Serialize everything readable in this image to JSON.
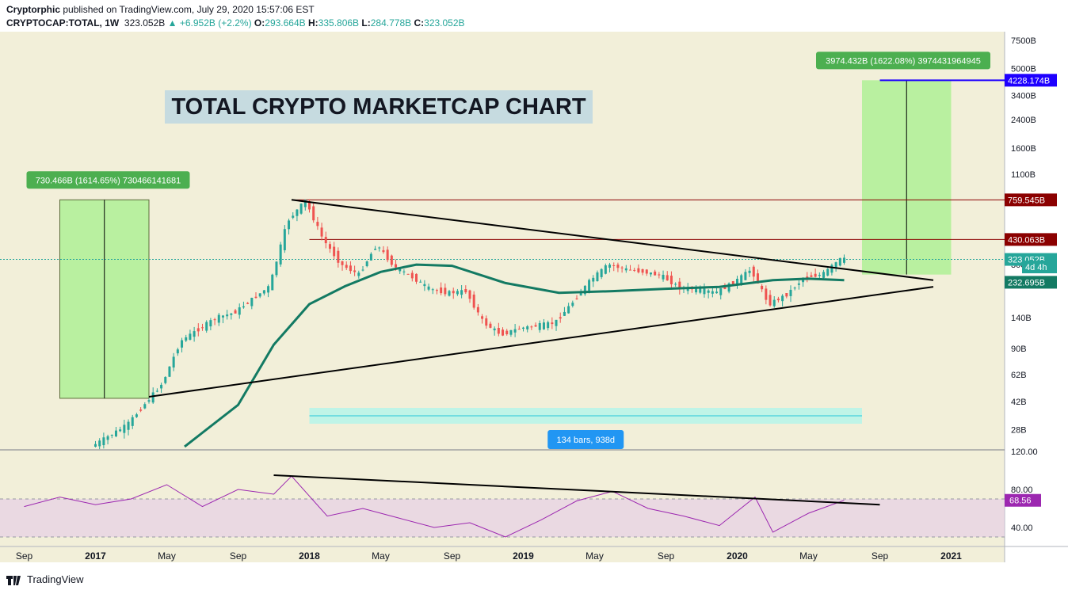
{
  "header": {
    "author": "Cryptorphic",
    "published_text": "published on TradingView.com, July 29, 2020 15:57:06 EST",
    "symbol": "CRYPTOCAP:TOTAL, 1W",
    "last": "323.052B",
    "change": "▲ +6.952B (+2.2%)",
    "o_label": "O:",
    "o_value": "293.664B",
    "h_label": "H:",
    "h_value": "335.806B",
    "l_label": "L:",
    "l_value": "284.778B",
    "c_label": "C:",
    "c_value": "323.052B"
  },
  "footer": {
    "brand": "TradingView"
  },
  "colors": {
    "background": "#f2efd9",
    "up": "#26a69a",
    "down": "#ef5350",
    "ma": "#137a63",
    "rsi": "#9c27b0",
    "target": "#b9f0a0"
  },
  "chart_data": [
    {
      "type": "candlestick",
      "title": "TOTAL CRYPTO MARKETCAP CHART",
      "scale": "log",
      "ylim_billions": [
        21,
        8300
      ],
      "y_tick_labels": [
        "7500B",
        "5000B",
        "3400B",
        "2400B",
        "1600B",
        "1100B",
        "760B",
        "440B",
        "300B",
        "140B",
        "90B",
        "62B",
        "42B",
        "28B"
      ],
      "x_tick_labels": [
        "Sep",
        "2017",
        "May",
        "Sep",
        "2018",
        "May",
        "Sep",
        "2019",
        "May",
        "Sep",
        "2020",
        "May",
        "Sep",
        "2021"
      ],
      "x_range": [
        "2016-08",
        "2021-04"
      ],
      "series": [
        {
          "name": "Weekly total market cap (approx. closes, billions)",
          "x": [
            "2017-01",
            "2017-03",
            "2017-05",
            "2017-06",
            "2017-08",
            "2017-09",
            "2017-11",
            "2017-12",
            "2018-01",
            "2018-02",
            "2018-03",
            "2018-04",
            "2018-05",
            "2018-06",
            "2018-07",
            "2018-08",
            "2018-09",
            "2018-10",
            "2018-11",
            "2018-12",
            "2019-01",
            "2019-03",
            "2019-04",
            "2019-05",
            "2019-06",
            "2019-07",
            "2019-08",
            "2019-09",
            "2019-10",
            "2019-11",
            "2019-12",
            "2020-01",
            "2020-02",
            "2020-03",
            "2020-04",
            "2020-05",
            "2020-06",
            "2020-07"
          ],
          "values": [
            22,
            30,
            55,
            100,
            140,
            150,
            220,
            560,
            750,
            430,
            300,
            260,
            400,
            290,
            250,
            210,
            200,
            205,
            130,
            110,
            120,
            130,
            175,
            240,
            300,
            280,
            270,
            255,
            215,
            210,
            200,
            230,
            280,
            170,
            195,
            250,
            260,
            323
          ]
        },
        {
          "name": "Moving average (approx., billions)",
          "x": [
            "2017-06",
            "2017-09",
            "2017-11",
            "2018-01",
            "2018-03",
            "2018-05",
            "2018-07",
            "2018-09",
            "2018-12",
            "2019-03",
            "2019-06",
            "2019-09",
            "2019-12",
            "2020-03",
            "2020-05",
            "2020-07"
          ],
          "values": [
            22,
            40,
            95,
            170,
            220,
            270,
            300,
            295,
            230,
            200,
            205,
            212,
            218,
            240,
            245,
            240
          ]
        }
      ],
      "annotations": {
        "price_labels": [
          {
            "text": "4228.174B",
            "value": 4228.174
          },
          {
            "text": "759.545B",
            "value": 759.545
          },
          {
            "text": "430.063B",
            "value": 430.063
          },
          {
            "text": "323.052B",
            "value": 323.052
          },
          {
            "text": "4d 4h",
            "value": 290
          },
          {
            "text": "232.695B",
            "value": 232.695
          }
        ],
        "measure_left": {
          "text": "730.466B (1614.65%) 730466141681",
          "from": 44,
          "to": 760
        },
        "measure_right": {
          "text": "3974.432B (1622.08%) 3974431964945",
          "from": 260,
          "to": 4228
        },
        "date_range": {
          "text": "134 bars, 938d"
        },
        "triangle_upper": {
          "from": {
            "x": "2017-12",
            "y": 760
          },
          "to": {
            "x": "2020-12",
            "y": 240
          }
        },
        "triangle_lower": {
          "from": {
            "x": "2017-04",
            "y": 45
          },
          "to": {
            "x": "2020-12",
            "y": 218
          }
        }
      }
    },
    {
      "type": "line",
      "title": "RSI",
      "ylim": [
        20,
        120
      ],
      "y_tick_labels": [
        "120.00",
        "80.00",
        "40.00"
      ],
      "band": [
        30,
        70
      ],
      "current_label": "68.56",
      "series": [
        {
          "name": "RSI",
          "x": [
            "2016-09",
            "2016-11",
            "2017-01",
            "2017-03",
            "2017-05",
            "2017-07",
            "2017-09",
            "2017-11",
            "2017-12",
            "2018-02",
            "2018-04",
            "2018-06",
            "2018-08",
            "2018-10",
            "2018-12",
            "2019-02",
            "2019-04",
            "2019-06",
            "2019-08",
            "2019-10",
            "2019-12",
            "2020-02",
            "2020-03",
            "2020-05",
            "2020-07"
          ],
          "values": [
            62,
            72,
            64,
            70,
            85,
            62,
            80,
            75,
            94,
            52,
            60,
            50,
            40,
            45,
            30,
            48,
            68,
            78,
            60,
            52,
            42,
            72,
            35,
            55,
            68.56
          ]
        }
      ],
      "annotations": {
        "trendline": {
          "from": {
            "x": "2017-11",
            "y": 95
          },
          "to": {
            "x": "2020-09",
            "y": 64
          }
        }
      }
    }
  ]
}
